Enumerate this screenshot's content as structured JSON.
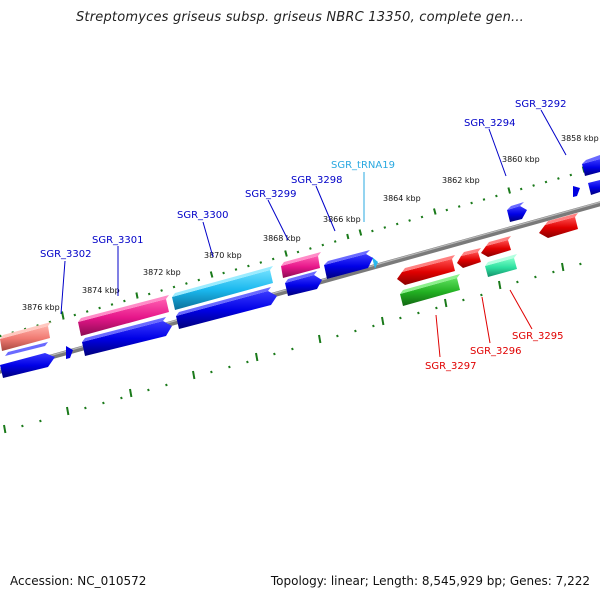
{
  "title": "Streptomyces griseus subsp. griseus NBRC 13350, complete gen...",
  "footer": {
    "accession": "Accession: NC_010572",
    "summary": "Topology: linear; Length: 8,545,929 bp; Genes: 7,222"
  },
  "scale_labels": [
    "3876 kbp",
    "3874 kbp",
    "3872 kbp",
    "3870 kbp",
    "3868 kbp",
    "3866 kbp",
    "3864 kbp",
    "3862 kbp",
    "3860 kbp",
    "3858 kbp"
  ],
  "gene_labels": {
    "g3302": "SGR_3302",
    "g3301": "SGR_3301",
    "g3300": "SGR_3300",
    "g3299": "SGR_3299",
    "g3298": "SGR_3298",
    "trna": "SGR_tRNA19",
    "g3294": "SGR_3294",
    "g3292": "SGR_3292",
    "g3297": "SGR_3297",
    "g3296": "SGR_3296",
    "g3295": "SGR_3295"
  },
  "colors": {
    "forward_label": "#0000c8",
    "reverse_label": "#e00000",
    "trna_label": "#29a8e0",
    "backbone": "#808080",
    "tick": "#1a7a1a"
  }
}
